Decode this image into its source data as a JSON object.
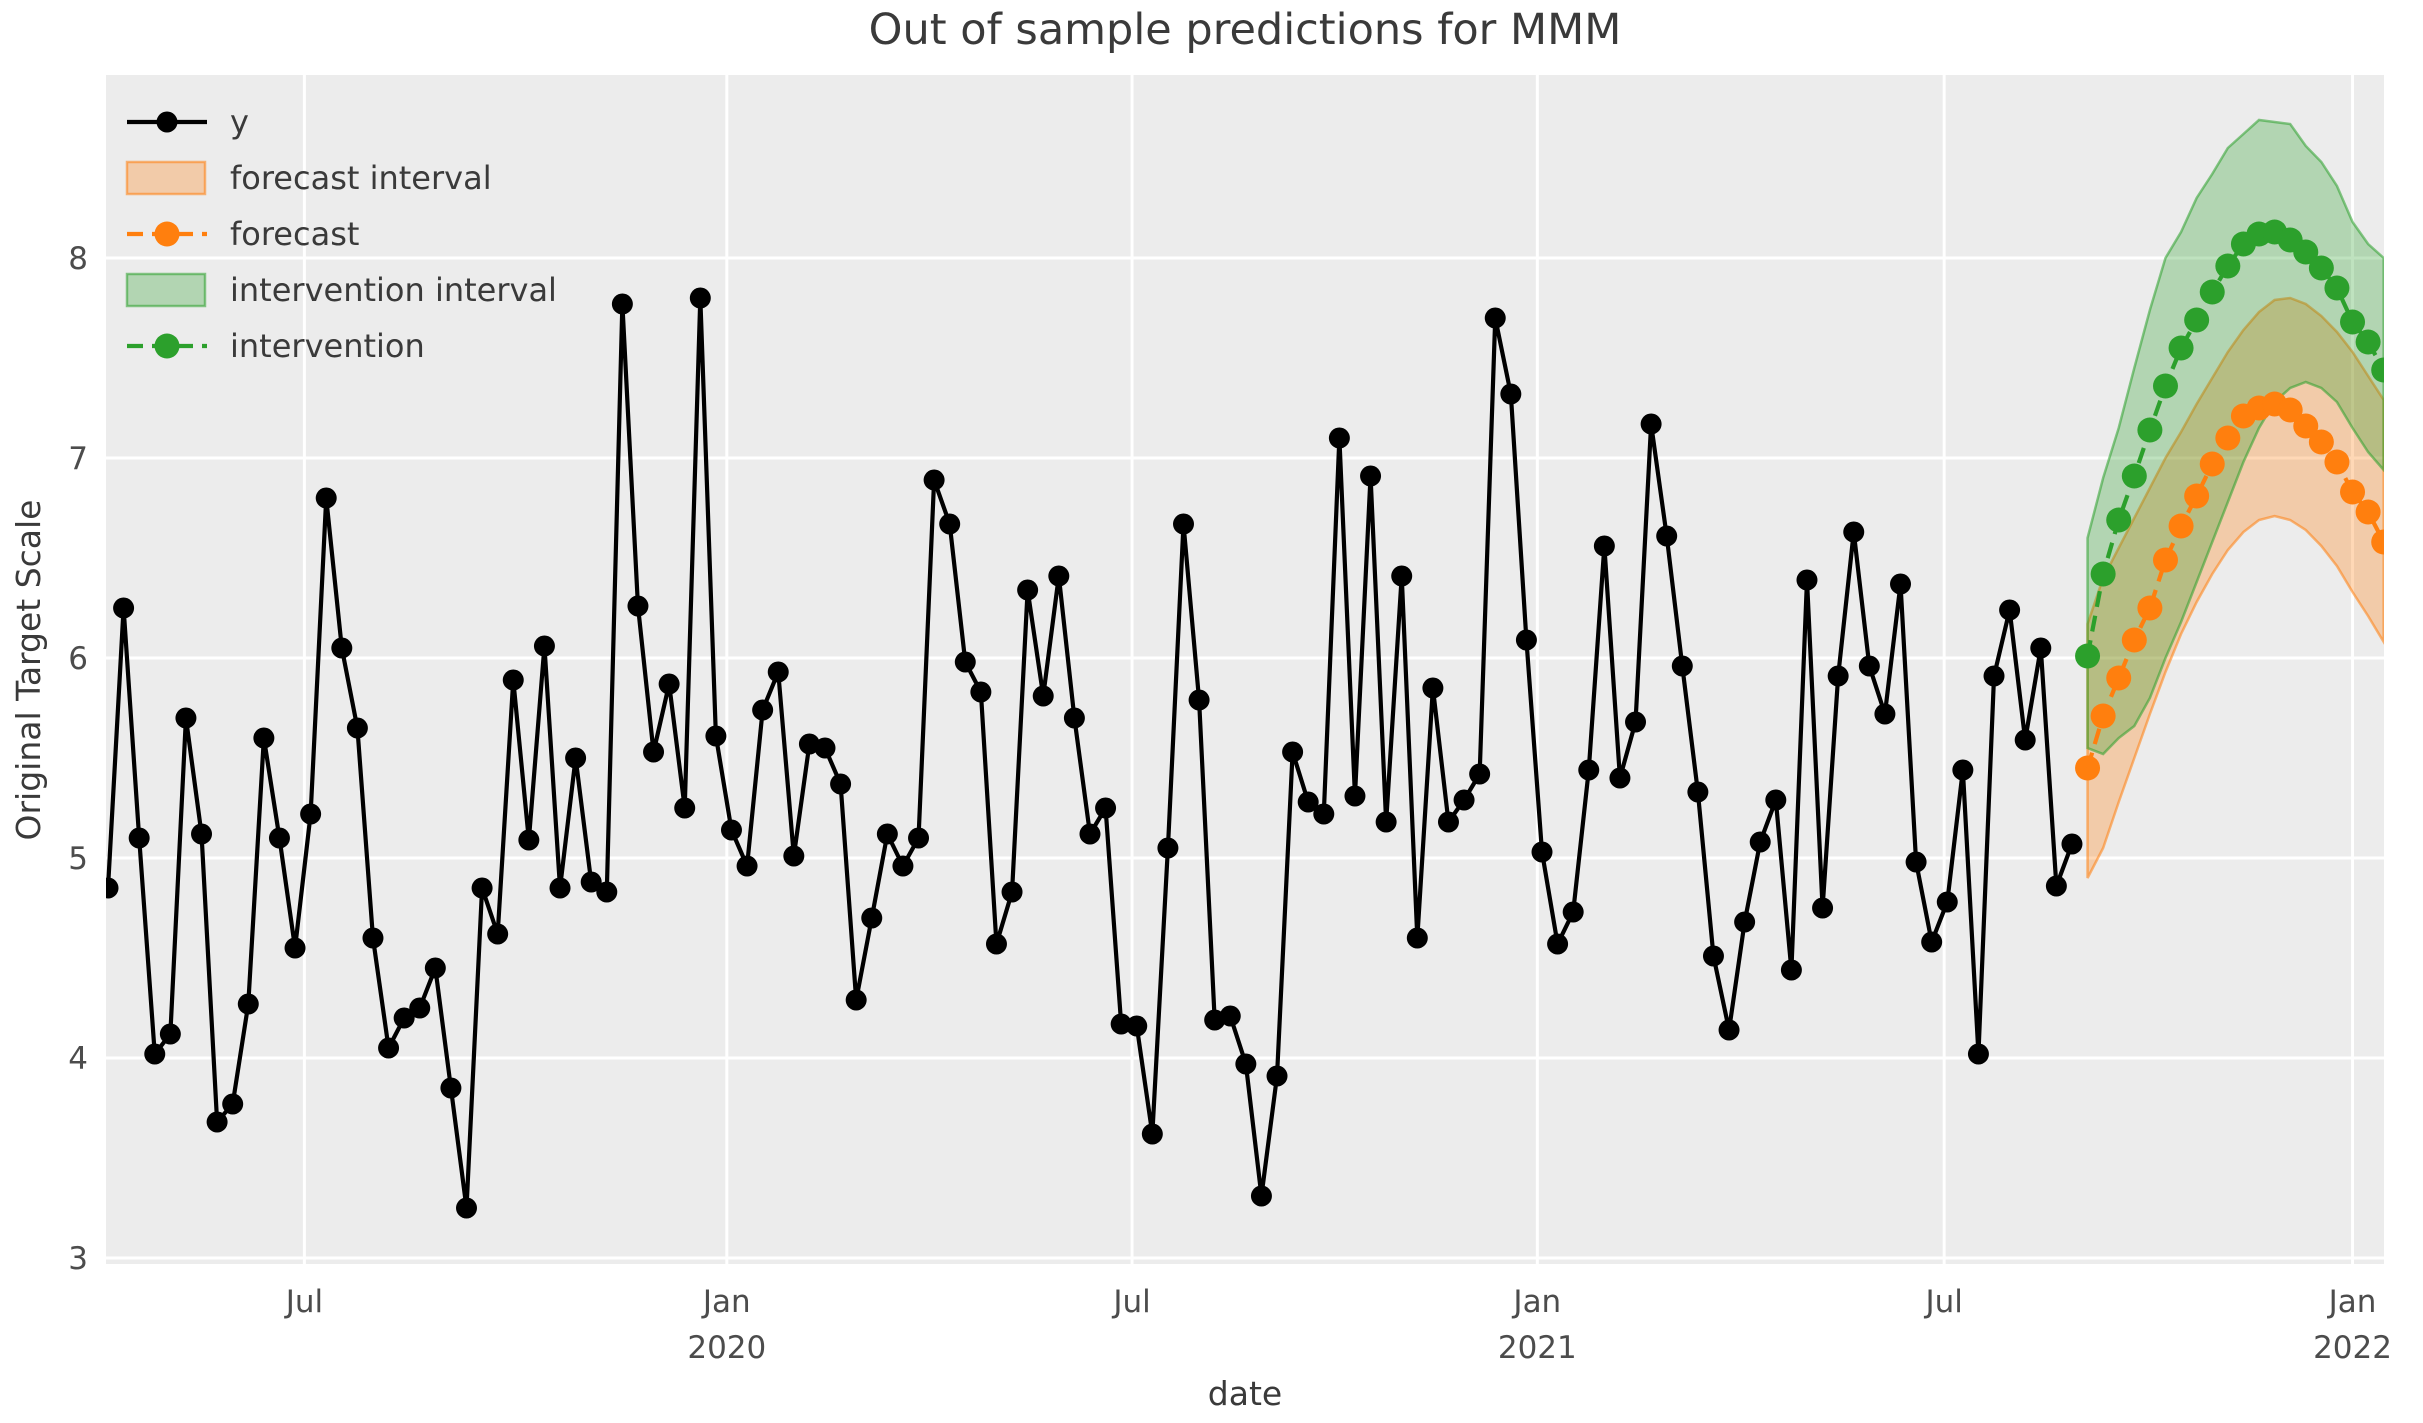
{
  "chart_data": {
    "type": "line",
    "title": "Out of sample predictions for MMM",
    "xlabel": "date",
    "ylabel": "Original Target Scale",
    "grid": true,
    "legend_position": "upper-left",
    "ylim": [
      2.97,
      8.92
    ],
    "yticks": [
      3,
      4,
      5,
      6,
      7,
      8
    ],
    "xticks": [
      {
        "label": "Jul",
        "sublabel": "",
        "index": 12.6
      },
      {
        "label": "Jan",
        "sublabel": "2020",
        "index": 39.7
      },
      {
        "label": "Jul",
        "sublabel": "",
        "index": 65.7
      },
      {
        "label": "Jan",
        "sublabel": "2021",
        "index": 91.7
      },
      {
        "label": "Jul",
        "sublabel": "",
        "index": 117.8
      },
      {
        "label": "Jan",
        "sublabel": "2022",
        "index": 144.0
      }
    ],
    "series": [
      {
        "name": "y",
        "style": "solid-marker",
        "color": "#000000",
        "start_index": 0,
        "values": [
          4.85,
          6.25,
          5.1,
          4.02,
          4.12,
          5.7,
          5.12,
          3.68,
          3.77,
          4.27,
          5.6,
          5.1,
          4.55,
          5.22,
          6.8,
          6.05,
          5.65,
          4.6,
          4.05,
          4.2,
          4.25,
          4.45,
          3.85,
          3.25,
          4.85,
          4.62,
          5.89,
          5.09,
          6.06,
          4.85,
          5.5,
          4.88,
          4.83,
          7.77,
          6.26,
          5.53,
          5.87,
          5.25,
          7.8,
          5.61,
          5.14,
          4.96,
          5.74,
          5.93,
          5.01,
          5.57,
          5.55,
          5.37,
          4.29,
          4.7,
          5.12,
          4.96,
          5.1,
          6.89,
          6.67,
          5.98,
          5.83,
          4.57,
          4.83,
          6.34,
          5.81,
          6.41,
          5.7,
          5.12,
          5.25,
          4.17,
          4.16,
          3.62,
          5.05,
          6.67,
          5.79,
          4.19,
          4.21,
          3.97,
          3.31,
          3.91,
          5.53,
          5.28,
          5.22,
          7.1,
          5.31,
          6.91,
          5.18,
          6.41,
          4.6,
          5.85,
          5.18,
          5.29,
          5.42,
          7.7,
          7.32,
          6.09,
          5.03,
          4.57,
          4.73,
          5.44,
          6.56,
          5.4,
          5.68,
          7.17,
          6.61,
          5.96,
          5.33,
          4.51,
          4.14,
          4.68,
          5.08,
          5.29,
          4.44,
          6.39,
          4.75,
          5.91,
          6.63,
          5.96,
          5.72,
          6.37,
          4.98,
          4.58,
          4.78,
          5.44,
          4.02,
          5.91,
          6.24,
          5.59,
          6.05,
          4.86,
          5.07
        ]
      },
      {
        "name": "forecast",
        "style": "dashed-marker",
        "color": "#ff7f0e",
        "start_index": 127,
        "values": [
          5.45,
          5.71,
          5.9,
          6.09,
          6.25,
          6.49,
          6.66,
          6.81,
          6.97,
          7.1,
          7.21,
          7.25,
          7.27,
          7.24,
          7.16,
          7.08,
          6.98,
          6.83,
          6.73,
          6.58
        ],
        "interval_name": "forecast interval",
        "interval_lo": [
          4.9,
          5.05,
          5.28,
          5.5,
          5.72,
          5.93,
          6.12,
          6.28,
          6.42,
          6.54,
          6.63,
          6.69,
          6.71,
          6.69,
          6.64,
          6.56,
          6.46,
          6.33,
          6.21,
          6.08
        ],
        "interval_hi": [
          6.17,
          6.4,
          6.55,
          6.7,
          6.85,
          7.0,
          7.13,
          7.27,
          7.4,
          7.53,
          7.64,
          7.73,
          7.79,
          7.8,
          7.77,
          7.71,
          7.63,
          7.53,
          7.41,
          7.29
        ]
      },
      {
        "name": "intervention",
        "style": "dashed-marker",
        "color": "#2ca02c",
        "start_index": 127,
        "values": [
          6.01,
          6.42,
          6.69,
          6.91,
          7.14,
          7.36,
          7.55,
          7.69,
          7.83,
          7.96,
          8.07,
          8.12,
          8.13,
          8.09,
          8.03,
          7.95,
          7.85,
          7.68,
          7.58,
          7.44
        ],
        "interval_name": "intervention interval",
        "interval_lo": [
          5.55,
          5.52,
          5.6,
          5.66,
          5.8,
          6.0,
          6.18,
          6.38,
          6.58,
          6.78,
          6.98,
          7.15,
          7.28,
          7.35,
          7.38,
          7.35,
          7.28,
          7.15,
          7.03,
          6.94
        ],
        "interval_hi": [
          6.6,
          6.9,
          7.15,
          7.45,
          7.74,
          8.0,
          8.13,
          8.3,
          8.42,
          8.55,
          8.62,
          8.69,
          8.68,
          8.67,
          8.56,
          8.48,
          8.36,
          8.18,
          8.07,
          8.0
        ]
      }
    ],
    "legend": [
      {
        "label": "y",
        "type": "line",
        "color": "#000000"
      },
      {
        "label": "forecast interval",
        "type": "patch",
        "color": "#ff7f0e"
      },
      {
        "label": "forecast",
        "type": "dashed-line",
        "color": "#ff7f0e"
      },
      {
        "label": "intervention interval",
        "type": "patch",
        "color": "#2ca02c"
      },
      {
        "label": "intervention",
        "type": "dashed-line",
        "color": "#2ca02c"
      }
    ],
    "colors": {
      "plot_background": "#ececec",
      "gridline": "#ffffff",
      "text": "#3a3a3a",
      "tick_text": "#4c4c4c",
      "band_alpha": 0.3
    }
  }
}
